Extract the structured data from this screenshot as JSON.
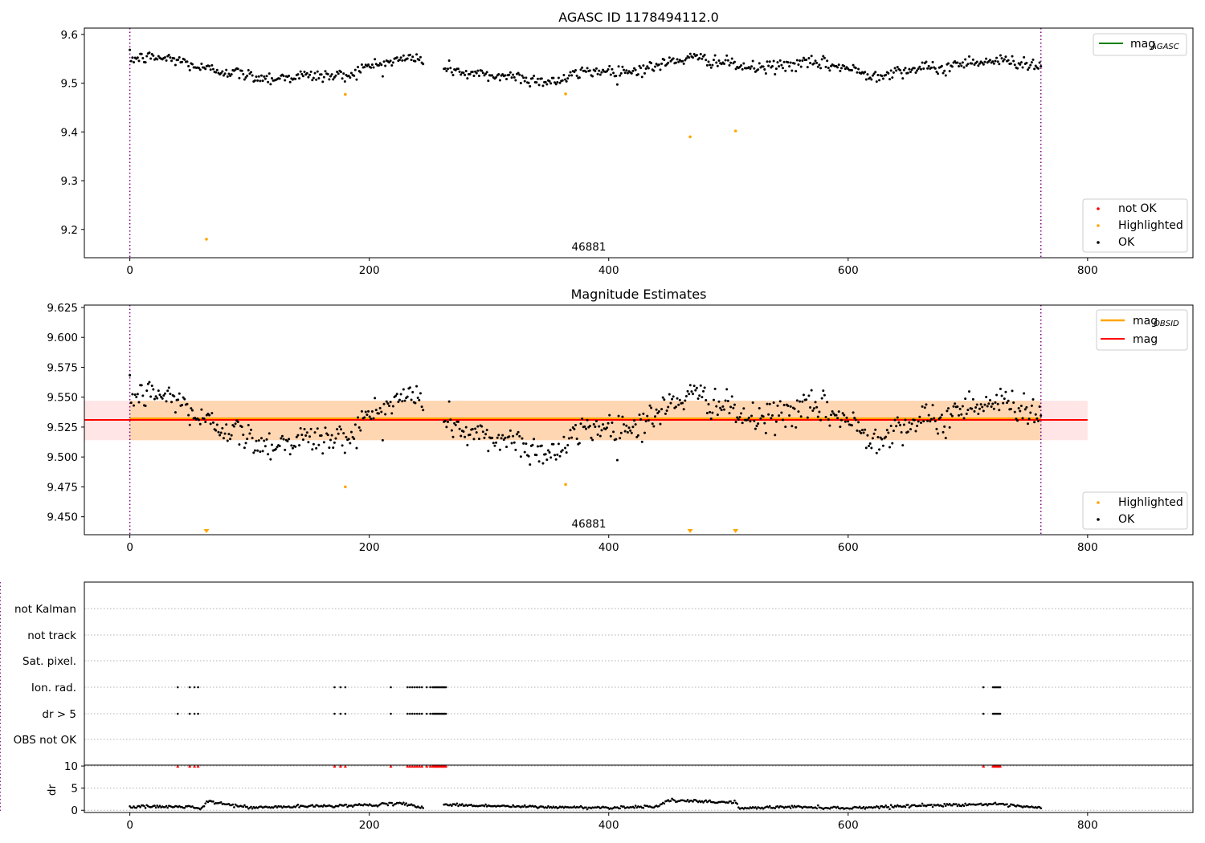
{
  "figure": {
    "panel1_title": "AGASC ID 1178494112.0",
    "panel2_title": "Magnitude Estimates",
    "obsid_label": "46881",
    "legend1_line": {
      "label": "mag",
      "subscript": "AGASC",
      "color": "#008000"
    },
    "legend1_points": [
      {
        "label": "not OK",
        "color": "#ff0000"
      },
      {
        "label": "Highlighted",
        "color": "#ffa500"
      },
      {
        "label": "OK",
        "color": "#000000"
      }
    ],
    "legend2_lines": [
      {
        "label": "mag",
        "subscript": "OBSID",
        "color": "#ffa500"
      },
      {
        "label": "mag",
        "subscript": "",
        "color": "#ff0000"
      }
    ],
    "legend2_points": [
      {
        "label": "Highlighted",
        "color": "#ffa500"
      },
      {
        "label": "OK",
        "color": "#000000"
      }
    ],
    "flag_labels": [
      "not Kalman",
      "not track",
      "Sat. pixel.",
      "Ion. rad.",
      "dr > 5",
      "OBS not OK"
    ],
    "dr_label": "dr"
  },
  "chart_data": [
    {
      "type": "scatter",
      "title": "AGASC ID 1178494112.0",
      "xlim": [
        -38,
        888
      ],
      "ylim": [
        9.142,
        9.613
      ],
      "xticks": [
        0,
        200,
        400,
        600,
        800
      ],
      "yticks": [
        9.2,
        9.3,
        9.4,
        9.5,
        9.6
      ],
      "obsid_start": 0,
      "obsid_end": 761,
      "annotation": "46881",
      "legend": [
        "mag AGASC",
        "not OK",
        "Highlighted",
        "OK"
      ],
      "ok_trend": {
        "x": [
          0,
          20,
          40,
          60,
          80,
          100,
          120,
          140,
          160,
          180,
          200,
          220,
          240,
          246,
          262,
          280,
          300,
          320,
          340,
          360,
          380,
          400,
          420,
          440,
          460,
          480,
          500,
          520,
          540,
          560,
          580,
          600,
          620,
          640,
          660,
          680,
          700,
          720,
          740,
          761
        ],
        "y": [
          9.55,
          9.553,
          9.548,
          9.53,
          9.525,
          9.515,
          9.51,
          9.515,
          9.515,
          9.515,
          9.535,
          9.545,
          9.555,
          9.53,
          9.535,
          9.52,
          9.515,
          9.515,
          9.505,
          9.505,
          9.525,
          9.525,
          9.525,
          9.535,
          9.55,
          9.55,
          9.54,
          9.53,
          9.535,
          9.54,
          9.54,
          9.53,
          9.515,
          9.525,
          9.53,
          9.53,
          9.545,
          9.545,
          9.545,
          9.535
        ],
        "scatter": 0.011,
        "count": 700,
        "gap": [
          246,
          262
        ]
      },
      "highlighted": {
        "x": [
          64,
          180,
          364,
          468,
          506
        ],
        "y": [
          9.18,
          9.477,
          9.478,
          9.39,
          9.402
        ]
      }
    },
    {
      "type": "scatter",
      "title": "Magnitude Estimates",
      "xlim": [
        -38,
        888
      ],
      "ylim": [
        9.435,
        9.627
      ],
      "xticks": [
        0,
        200,
        400,
        600,
        800
      ],
      "yticks": [
        9.45,
        9.475,
        9.5,
        9.525,
        9.55,
        9.575,
        9.6,
        9.625
      ],
      "obsid_start": 0,
      "obsid_end": 761,
      "annotation": "46881",
      "mag": 9.531,
      "mag_band": [
        9.514,
        9.547
      ],
      "mag_band_x": [
        -38,
        800
      ],
      "mag_obsid": 9.531,
      "mag_obsid_band": [
        9.514,
        9.547
      ],
      "mag_obsid_band_x": [
        0,
        761
      ],
      "legend": [
        "mag OBSID",
        "mag",
        "Highlighted",
        "OK"
      ],
      "ok_trend_ref": 0,
      "highlighted": {
        "x": [
          180,
          364
        ],
        "y": [
          9.475,
          9.477
        ]
      },
      "highlighted_below_range_x": [
        64,
        468,
        506
      ]
    },
    {
      "type": "scatter",
      "title": "",
      "xlim": [
        -38,
        888
      ],
      "xticks": [
        0,
        200,
        400,
        600,
        800
      ],
      "categories": [
        "not Kalman",
        "not track",
        "Sat. pixel.",
        "Ion. rad.",
        "dr > 5",
        "OBS not OK"
      ],
      "ion_rad_x": [
        40,
        50,
        54,
        57,
        171,
        176,
        180,
        218,
        232,
        234,
        236,
        238,
        240,
        242,
        244,
        248,
        251,
        253,
        254,
        255,
        256,
        257,
        258,
        259,
        260,
        261,
        262,
        263,
        264,
        713,
        721,
        722,
        723,
        724,
        725,
        726,
        727
      ],
      "dr_gt5_x": [
        40,
        50,
        54,
        57,
        171,
        176,
        180,
        218,
        232,
        234,
        236,
        238,
        240,
        242,
        244,
        248,
        251,
        253,
        254,
        255,
        256,
        257,
        258,
        259,
        260,
        261,
        262,
        263,
        264,
        713,
        721,
        722,
        723,
        724,
        725,
        726,
        727
      ],
      "dr_ylabel": "dr",
      "dr_yticks": [
        0,
        5,
        10
      ],
      "dr_ylim": [
        -0.5,
        10.2
      ],
      "dr_trend": {
        "x": [
          0,
          50,
          60,
          65,
          100,
          150,
          200,
          230,
          246,
          262,
          300,
          350,
          400,
          440,
          450,
          500,
          505,
          510,
          550,
          600,
          650,
          700,
          720,
          761
        ],
        "y": [
          0.8,
          0.8,
          0.3,
          2.0,
          0.6,
          0.9,
          1.2,
          1.5,
          0.5,
          1.3,
          1.0,
          0.7,
          0.6,
          0.9,
          2.2,
          1.8,
          2.0,
          0.4,
          0.8,
          0.5,
          1.0,
          1.3,
          1.4,
          0.5
        ],
        "count": 700
      },
      "dr_clipped_x": [
        40,
        50,
        54,
        57,
        171,
        176,
        180,
        218,
        232,
        234,
        236,
        238,
        240,
        242,
        244,
        248,
        251,
        253,
        254,
        255,
        256,
        257,
        258,
        259,
        260,
        261,
        262,
        263,
        264,
        713,
        721,
        722,
        723,
        724,
        725,
        726,
        727
      ]
    }
  ]
}
